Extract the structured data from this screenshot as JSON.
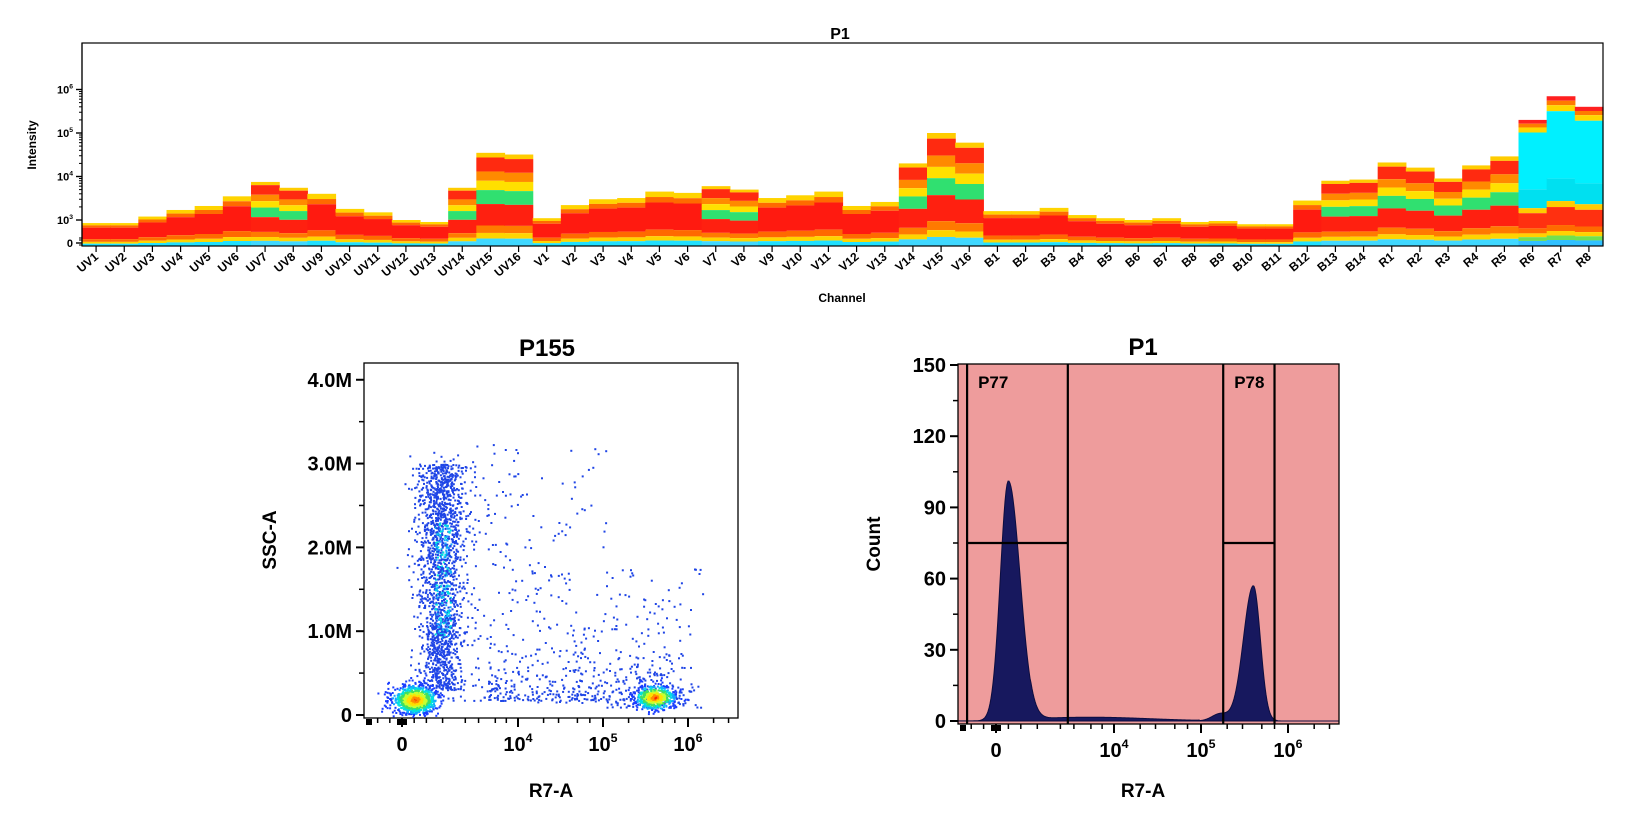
{
  "chart_data": [
    {
      "type": "heatmap",
      "title": "P1",
      "xlabel": "Channel",
      "ylabel": "Intensity",
      "y_scale": "log",
      "y_ticks": [
        "0",
        "10^3",
        "10^4",
        "10^5",
        "10^6"
      ],
      "categories": [
        "UV1",
        "UV2",
        "UV3",
        "UV4",
        "UV5",
        "UV6",
        "UV7",
        "UV8",
        "UV9",
        "UV10",
        "UV11",
        "UV12",
        "UV13",
        "UV14",
        "UV15",
        "UV16",
        "V1",
        "V2",
        "V3",
        "V4",
        "V5",
        "V6",
        "V7",
        "V8",
        "V9",
        "V10",
        "V11",
        "V12",
        "V13",
        "V14",
        "V15",
        "V16",
        "B1",
        "B2",
        "B3",
        "B4",
        "B5",
        "B6",
        "B7",
        "B8",
        "B9",
        "B10",
        "B11",
        "B12",
        "B13",
        "B14",
        "R1",
        "R2",
        "R3",
        "R4",
        "R5",
        "R6",
        "R7",
        "R8"
      ],
      "series": [
        {
          "values": [
            850,
            850,
            1200,
            1700,
            2100,
            3500,
            7500,
            5500,
            4000,
            1800,
            1500,
            1000,
            900,
            5500,
            35000,
            32000,
            1100,
            2200,
            3000,
            3200,
            4500,
            4200,
            6000,
            5000,
            3200,
            3700,
            4500,
            2100,
            2600,
            20000,
            100000,
            60000,
            1600,
            1600,
            1900,
            1300,
            1100,
            1000,
            1100,
            900,
            950,
            800,
            800,
            2800,
            8000,
            8500,
            21000,
            16000,
            9000,
            18000,
            29000,
            200000,
            700000,
            400000
          ]
        }
      ],
      "legend_position": "none",
      "colormap": "blue-cyan-green-yellow-orange-red"
    },
    {
      "type": "scatter",
      "title": "P155",
      "xlabel": "R7-A",
      "ylabel": "SSC-A",
      "x_scale": "biexponential",
      "x_ticks": [
        "0",
        "10^4",
        "10^5",
        "10^6"
      ],
      "y_ticks": [
        "0",
        "1.0M",
        "2.0M",
        "3.0M",
        "4.0M"
      ],
      "ylim": [
        0,
        4200000
      ],
      "populations": [
        {
          "x_center": 300,
          "y_center": 190000
        },
        {
          "x_center": 400000,
          "y_center": 220000
        },
        {
          "x_center": 1000,
          "y_range": [
            300000,
            3000000
          ]
        }
      ],
      "density_colormap": "blue-cyan-green-yellow-red",
      "grid": false
    },
    {
      "type": "area",
      "title": "P1",
      "xlabel": "R7-A",
      "ylabel": "Count",
      "x_scale": "biexponential",
      "x_ticks": [
        "0",
        "10^4",
        "10^5",
        "10^6"
      ],
      "y_ticks": [
        "0",
        "30",
        "60",
        "90",
        "120",
        "150"
      ],
      "ylim": [
        0,
        150
      ],
      "peaks": [
        {
          "x": 300,
          "count": 101
        },
        {
          "x": 400000,
          "count": 57
        }
      ],
      "gates": [
        {
          "label": "P77",
          "range": [
            "-700",
            "2500"
          ],
          "marker_count": 75
        },
        {
          "label": "P78",
          "range": [
            "180000",
            "700000"
          ],
          "marker_count": 75
        }
      ],
      "background_color": "#ee9c9c",
      "fill_color": "#17185e",
      "grid": false
    }
  ]
}
